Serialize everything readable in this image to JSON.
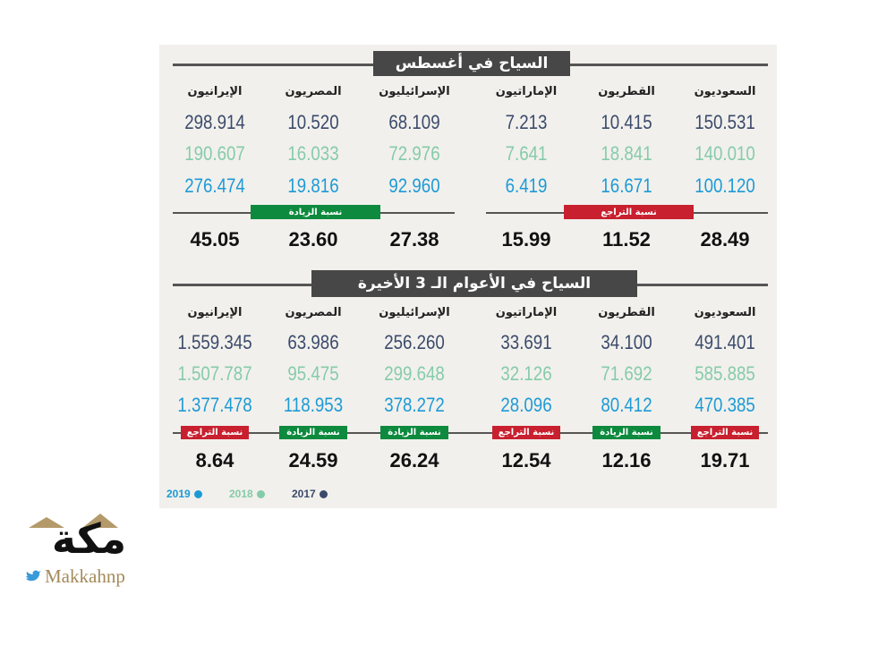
{
  "legend": [
    {
      "label": "2019",
      "color": "#1d9ad6"
    },
    {
      "label": "2018",
      "color": "#86cba9"
    },
    {
      "label": "2017",
      "color": "#3b4a6b"
    }
  ],
  "sections": [
    {
      "title": "السياح في أغسطس",
      "columns": [
        {
          "name": "السعوديون",
          "values": [
            "150.531",
            "140.010",
            "100.120"
          ],
          "rate": "28.49"
        },
        {
          "name": "القطريون",
          "values": [
            "10.415",
            "18.841",
            "16.671"
          ],
          "rate": "11.52"
        },
        {
          "name": "الإماراتيون",
          "values": [
            "7.213",
            "7.641",
            "6.419"
          ],
          "rate": "15.99"
        },
        {
          "name": "الإسرائيليون",
          "values": [
            "68.109",
            "72.976",
            "92.960"
          ],
          "rate": "27.38"
        },
        {
          "name": "المصريون",
          "values": [
            "10.520",
            "16.033",
            "19.816"
          ],
          "rate": "23.60"
        },
        {
          "name": "الإيرانيون",
          "values": [
            "298.914",
            "190.607",
            "276.474"
          ],
          "rate": "45.05"
        }
      ],
      "groups": [
        {
          "label": "نسبة التراجع",
          "color": "#c8202f"
        },
        {
          "label": "نسبة الزيادة",
          "color": "#0d8a3e"
        }
      ]
    },
    {
      "title": "السياح في الأعوام الـ 3 الأخيرة",
      "columns": [
        {
          "name": "السعوديون",
          "values": [
            "491.401",
            "585.885",
            "470.385"
          ],
          "rate_label": "نسبة التراجع",
          "rate_color": "#c8202f",
          "rate": "19.71"
        },
        {
          "name": "القطريون",
          "values": [
            "34.100",
            "71.692",
            "80.412"
          ],
          "rate_label": "نسبة الزيادة",
          "rate_color": "#0d8a3e",
          "rate": "12.16"
        },
        {
          "name": "الإماراتيون",
          "values": [
            "33.691",
            "32.126",
            "28.096"
          ],
          "rate_label": "نسبة التراجع",
          "rate_color": "#c8202f",
          "rate": "12.54"
        },
        {
          "name": "الإسرائيليون",
          "values": [
            "256.260",
            "299.648",
            "378.272"
          ],
          "rate_label": "نسبة الزيادة",
          "rate_color": "#0d8a3e",
          "rate": "26.24"
        },
        {
          "name": "المصريون",
          "values": [
            "63.986",
            "95.475",
            "118.953"
          ],
          "rate_label": "نسبة الزيادة",
          "rate_color": "#0d8a3e",
          "rate": "24.59"
        },
        {
          "name": "الإيرانيون",
          "values": [
            "1.559.345",
            "1.507.787",
            "1.377.478"
          ],
          "rate_label": "نسبة التراجع",
          "rate_color": "#c8202f",
          "rate": "8.64"
        }
      ]
    }
  ],
  "logo": {
    "name": "مكة",
    "handle": "Makkahnp"
  }
}
